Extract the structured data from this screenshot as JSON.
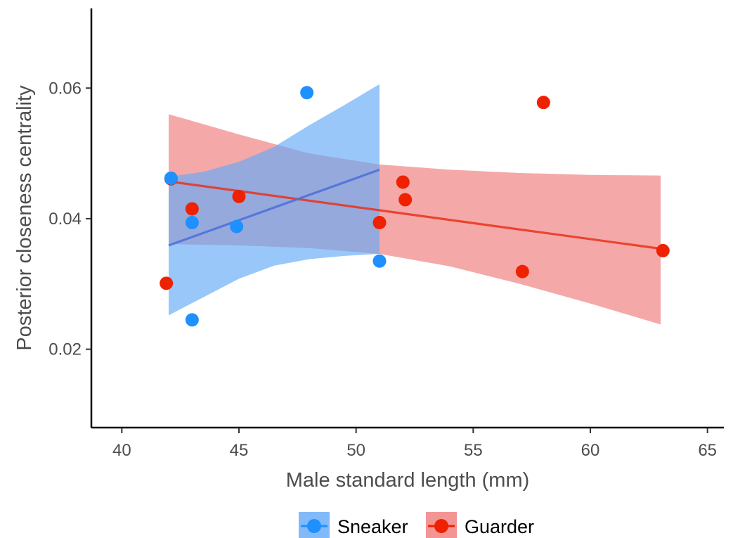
{
  "chart_data": {
    "type": "scatter",
    "title": "",
    "xlabel": "Male standard length (mm)",
    "ylabel": "Posterior closeness centrality",
    "xlim": [
      38.7,
      65.7
    ],
    "ylim": [
      0.008,
      0.0722
    ],
    "x_ticks": [
      40,
      45,
      50,
      55,
      60,
      65
    ],
    "x_tick_labels": [
      "40",
      "45",
      "50",
      "55",
      "60",
      "65"
    ],
    "y_ticks": [
      0.02,
      0.04,
      0.06
    ],
    "y_tick_labels": [
      "0.02",
      "0.04",
      "0.06"
    ],
    "grid": false,
    "legend_position": "bottom",
    "series": [
      {
        "name": "Sneaker",
        "color": "#1e90ff",
        "band_color": "#63a9f7",
        "line_color": "#4a6fd9",
        "points": [
          {
            "x": 42.1,
            "y": 0.0462
          },
          {
            "x": 43.0,
            "y": 0.0245
          },
          {
            "x": 43.0,
            "y": 0.0394
          },
          {
            "x": 44.9,
            "y": 0.0388
          },
          {
            "x": 47.9,
            "y": 0.0593
          },
          {
            "x": 51.0,
            "y": 0.0335
          }
        ],
        "fit": [
          {
            "x": 42.0,
            "y": 0.0359
          },
          {
            "x": 51.0,
            "y": 0.0475
          }
        ],
        "ci_upper": [
          {
            "x": 42.0,
            "y": 0.0464
          },
          {
            "x": 43.5,
            "y": 0.0472
          },
          {
            "x": 45.0,
            "y": 0.0487
          },
          {
            "x": 46.5,
            "y": 0.051
          },
          {
            "x": 48.0,
            "y": 0.0543
          },
          {
            "x": 49.5,
            "y": 0.0574
          },
          {
            "x": 51.0,
            "y": 0.0606
          }
        ],
        "ci_lower": [
          {
            "x": 42.0,
            "y": 0.0252
          },
          {
            "x": 43.5,
            "y": 0.028
          },
          {
            "x": 45.0,
            "y": 0.0308
          },
          {
            "x": 46.5,
            "y": 0.0328
          },
          {
            "x": 48.0,
            "y": 0.0338
          },
          {
            "x": 49.5,
            "y": 0.0343
          },
          {
            "x": 51.0,
            "y": 0.0346
          }
        ]
      },
      {
        "name": "Guarder",
        "color": "#ee2200",
        "band_color": "#f07a7a",
        "line_color": "#e8331c",
        "points": [
          {
            "x": 41.9,
            "y": 0.0301
          },
          {
            "x": 42.1,
            "y": 0.0461
          },
          {
            "x": 43.0,
            "y": 0.0415
          },
          {
            "x": 45.0,
            "y": 0.0434
          },
          {
            "x": 51.0,
            "y": 0.0394
          },
          {
            "x": 52.0,
            "y": 0.0456
          },
          {
            "x": 52.1,
            "y": 0.0429
          },
          {
            "x": 57.1,
            "y": 0.0319
          },
          {
            "x": 58.0,
            "y": 0.0578
          },
          {
            "x": 63.1,
            "y": 0.0351
          }
        ],
        "fit": [
          {
            "x": 42.0,
            "y": 0.0457
          },
          {
            "x": 63.0,
            "y": 0.0354
          }
        ],
        "ci_upper": [
          {
            "x": 42.0,
            "y": 0.056
          },
          {
            "x": 45.0,
            "y": 0.0529
          },
          {
            "x": 48.0,
            "y": 0.05
          },
          {
            "x": 51.0,
            "y": 0.0483
          },
          {
            "x": 54.0,
            "y": 0.0475
          },
          {
            "x": 57.0,
            "y": 0.047
          },
          {
            "x": 60.0,
            "y": 0.0467
          },
          {
            "x": 63.0,
            "y": 0.0466
          }
        ],
        "ci_lower": [
          {
            "x": 42.0,
            "y": 0.0361
          },
          {
            "x": 45.0,
            "y": 0.0359
          },
          {
            "x": 48.0,
            "y": 0.0355
          },
          {
            "x": 51.0,
            "y": 0.0346
          },
          {
            "x": 54.0,
            "y": 0.0327
          },
          {
            "x": 57.0,
            "y": 0.03
          },
          {
            "x": 60.0,
            "y": 0.027
          },
          {
            "x": 63.0,
            "y": 0.0238
          }
        ]
      }
    ]
  }
}
